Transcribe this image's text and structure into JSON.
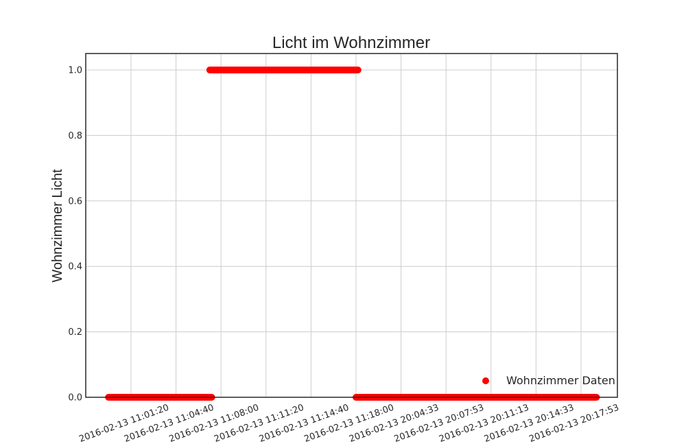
{
  "chart_data": {
    "type": "scatter",
    "title": "Licht im Wohnzimmer",
    "xlabel": "",
    "ylabel": "Wohnzimmer Licht",
    "ylim": [
      0,
      1.05
    ],
    "yticks": [
      0.0,
      0.2,
      0.4,
      0.6,
      0.8,
      1.0
    ],
    "ytick_labels": [
      "0.0",
      "0.2",
      "0.4",
      "0.6",
      "0.8",
      "1.0"
    ],
    "xtick_labels": [
      "2016-02-13 11:01:20",
      "2016-02-13 11:04:40",
      "2016-02-13 11:08:00",
      "2016-02-13 11:11:20",
      "2016-02-13 11:14:40",
      "2016-02-13 11:18:00",
      "2016-02-13 20:04:33",
      "2016-02-13 20:07:53",
      "2016-02-13 20:11:13",
      "2016-02-13 20:14:33",
      "2016-02-13 20:17:53"
    ],
    "x_range": [
      -1,
      10.8
    ],
    "grid": true,
    "legend_position": "lower-right",
    "series": [
      {
        "name": "Wohnzimmer Daten",
        "color": "#ff0000",
        "segments": [
          {
            "x_start": -0.5,
            "x_end": 1.8,
            "y": 0.0
          },
          {
            "x_start": 1.75,
            "x_end": 5.05,
            "y": 1.0
          },
          {
            "x_start": 5.0,
            "x_end": 10.35,
            "y": 0.0
          }
        ]
      }
    ]
  }
}
